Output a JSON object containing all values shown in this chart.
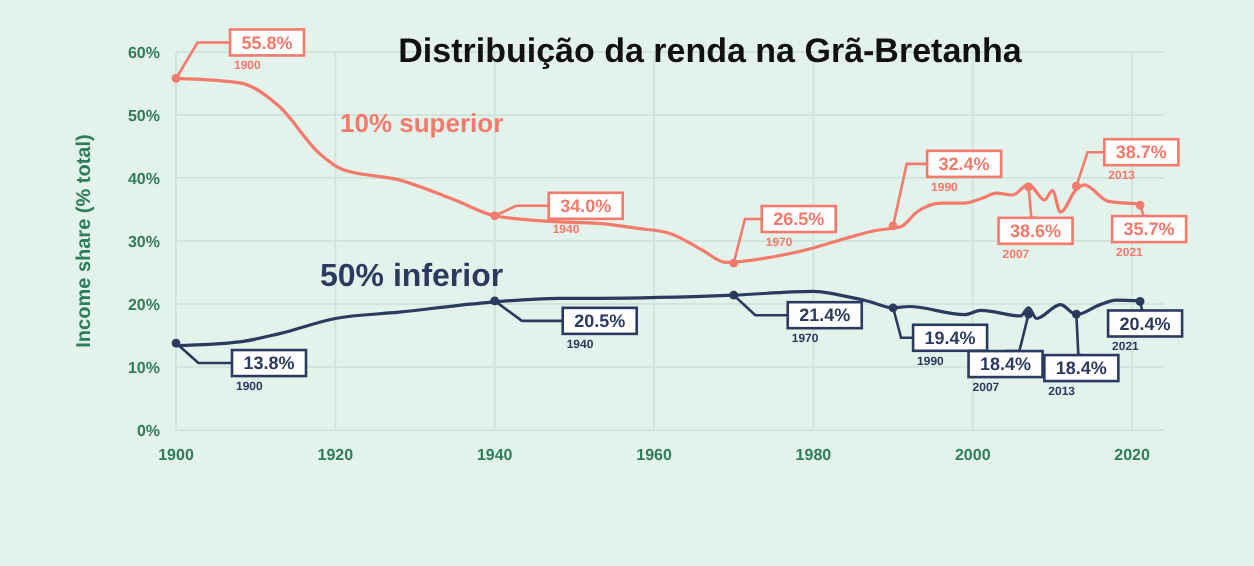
{
  "chart_data": {
    "type": "line",
    "title": "Distribuição da renda na Grã-Bretanha",
    "ylabel": "Income share (% total)",
    "xlim": [
      1900,
      2024
    ],
    "xticks": [
      1900,
      1920,
      1940,
      1960,
      1980,
      2000,
      2020
    ],
    "ylim": [
      0,
      60
    ],
    "yticks": [
      {
        "value": 0,
        "label": "0%"
      },
      {
        "value": 10,
        "label": "10%"
      },
      {
        "value": 20,
        "label": "20%"
      },
      {
        "value": 30,
        "label": "30%"
      },
      {
        "value": 40,
        "label": "40%"
      },
      {
        "value": 50,
        "label": "50%"
      },
      {
        "value": 60,
        "label": "60%"
      }
    ],
    "grid": true,
    "series": [
      {
        "name": "10% superior",
        "color": "#f47a6c",
        "x": [
          1900,
          1908,
          1913,
          1918,
          1921,
          1928,
          1935,
          1940,
          1947,
          1953,
          1958,
          1962,
          1966,
          1969,
          1975,
          1980,
          1984,
          1988,
          1991,
          1993,
          1996,
          1999,
          2001,
          2003,
          2005,
          2007,
          2009,
          2010,
          2011,
          2013,
          2014,
          2017,
          2021
        ],
        "values": [
          55.8,
          55.1,
          51.3,
          43.9,
          41.3,
          39.7,
          36.5,
          34,
          33.1,
          32.8,
          32,
          31.2,
          28.6,
          26.6,
          27.5,
          28.9,
          30.4,
          31.7,
          32.3,
          34.6,
          36,
          36,
          36.7,
          37.6,
          37.3,
          39,
          36.5,
          38,
          34.6,
          38.2,
          38.9,
          36.3,
          35.9
        ]
      },
      {
        "name": "50% inferior",
        "color": "#2b3a5f",
        "x": [
          1900,
          1908,
          1913,
          1920,
          1928,
          1938,
          1948,
          1953,
          1970,
          1980,
          1983,
          1987,
          1990,
          1992,
          1999,
          2001,
          2006,
          2007,
          2008,
          2011,
          2013,
          2016,
          2018,
          2021
        ],
        "values": [
          13.4,
          14,
          15.3,
          17.7,
          18.7,
          20.1,
          20.9,
          20.9,
          21.4,
          22,
          21.5,
          20.4,
          19.4,
          19.6,
          18.3,
          19,
          18.1,
          19.4,
          17.7,
          19.9,
          18.3,
          19.9,
          20.6,
          20.5
        ]
      }
    ],
    "annotations": [
      {
        "text": "55.8%\n1900",
        "x": 1900,
        "y": 55.8
      },
      {
        "text": "34.0%\n1940",
        "x": 1940,
        "y": 34
      },
      {
        "text": "26.5%\n1970",
        "x": 1970,
        "y": 26.5
      },
      {
        "text": "32.4%\n1990",
        "x": 1990,
        "y": 32.4
      },
      {
        "text": "38.6%\n2007",
        "x": 2007,
        "y": 38.6
      },
      {
        "text": "38.7%\n2013",
        "x": 2013,
        "y": 38.7
      },
      {
        "text": "35.7%\n2021",
        "x": 2021,
        "y": 35.7
      },
      {
        "text": "13.8%\n1900",
        "x": 1900,
        "y": 13.8
      },
      {
        "text": "20.5%\n1940",
        "x": 1940,
        "y": 20.5
      },
      {
        "text": "21.4%\n1970",
        "x": 1970,
        "y": 21.4
      },
      {
        "text": "19.4%\n1990",
        "x": 1990,
        "y": 19.4
      },
      {
        "text": "18.4%\n2007",
        "x": 2007,
        "y": 18.4
      },
      {
        "text": "18.4%\n2013",
        "x": 2013,
        "y": 18.4
      },
      {
        "text": "20.4%\n2021",
        "x": 2021,
        "y": 20.4
      }
    ]
  }
}
